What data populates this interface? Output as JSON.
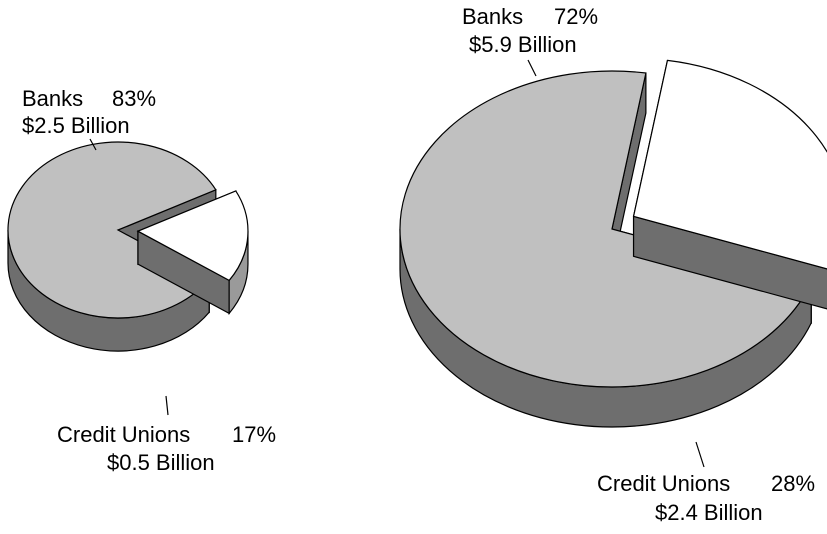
{
  "chart_data": [
    {
      "type": "pie",
      "style": "3d-exploded",
      "slices": [
        {
          "name": "Banks",
          "percent_label": "83%",
          "amount_label": "$2.5 Billion",
          "value": 2.5,
          "percent": 83,
          "color": "#c0c0c0",
          "exploded": false
        },
        {
          "name": "Credit Unions",
          "percent_label": "17%",
          "amount_label": "$0.5 Billion",
          "value": 0.5,
          "percent": 17,
          "color": "#ffffff",
          "exploded": true
        }
      ]
    },
    {
      "type": "pie",
      "style": "3d-exploded",
      "slices": [
        {
          "name": "Banks",
          "percent_label": "72%",
          "amount_label": "$5.9 Billion",
          "value": 5.9,
          "percent": 72,
          "color": "#c0c0c0",
          "exploded": false
        },
        {
          "name": "Credit Unions",
          "percent_label": "28%",
          "amount_label": "$2.4 Billion",
          "value": 2.4,
          "percent": 28,
          "color": "#ffffff",
          "exploded": true
        }
      ]
    }
  ],
  "colors": {
    "outline": "#000000",
    "side_dark": "#6e6e6e",
    "side_light": "#9a9a9a"
  }
}
